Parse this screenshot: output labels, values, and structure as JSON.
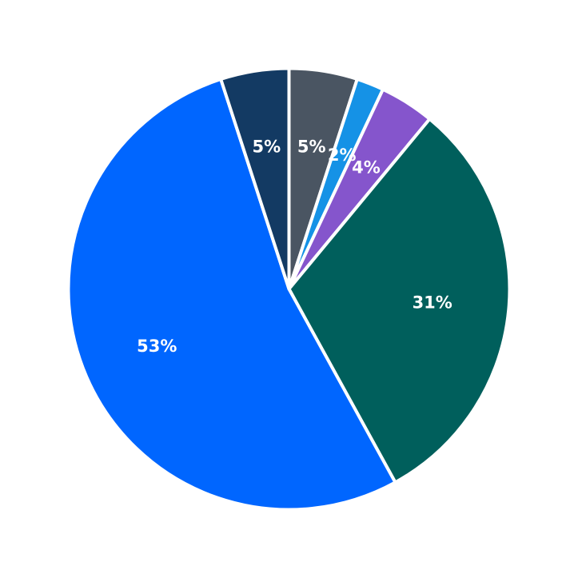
{
  "chart_data": {
    "type": "pie",
    "start_angle_deg": 0,
    "direction": "clockwise",
    "slices": [
      {
        "value": 5,
        "label": "5%",
        "color": "#4A5562"
      },
      {
        "value": 2,
        "label": "2%",
        "color": "#1592E6"
      },
      {
        "value": 4,
        "label": "4%",
        "color": "#8555CC"
      },
      {
        "value": 31,
        "label": "31%",
        "color": "#005F5C"
      },
      {
        "value": 53,
        "label": "53%",
        "color": "#0066FF"
      },
      {
        "value": 5,
        "label": "5%",
        "color": "#133A63"
      }
    ],
    "legend": "none"
  }
}
